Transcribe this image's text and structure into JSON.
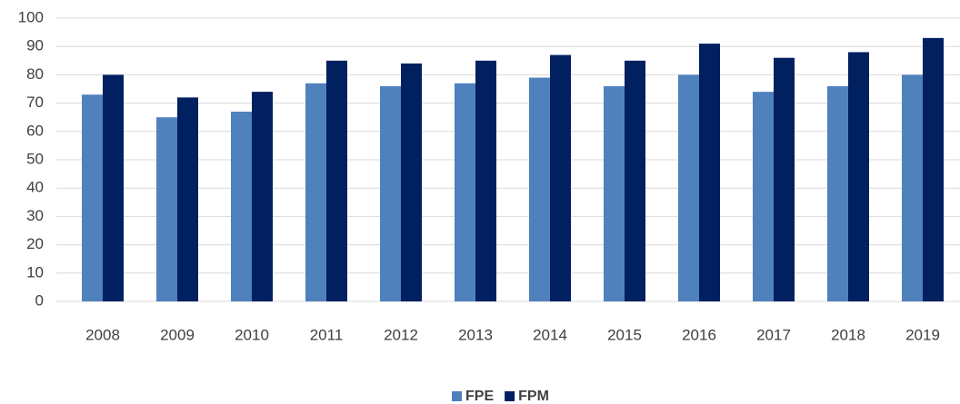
{
  "chart_data": {
    "type": "bar",
    "categories": [
      "2008",
      "2009",
      "2010",
      "2011",
      "2012",
      "2013",
      "2014",
      "2015",
      "2016",
      "2017",
      "2018",
      "2019"
    ],
    "series": [
      {
        "name": "FPE",
        "color": "#4f81bd",
        "values": [
          73,
          65,
          67,
          77,
          76,
          77,
          79,
          76,
          80,
          74,
          76,
          80
        ]
      },
      {
        "name": "FPM",
        "color": "#002060",
        "values": [
          80,
          72,
          74,
          85,
          84,
          85,
          87,
          85,
          91,
          86,
          88,
          93
        ]
      }
    ],
    "ylim": [
      0,
      100
    ],
    "yticks": [
      0,
      10,
      20,
      30,
      40,
      50,
      60,
      70,
      80,
      90,
      100
    ],
    "grid": true,
    "legend": "bottom"
  }
}
